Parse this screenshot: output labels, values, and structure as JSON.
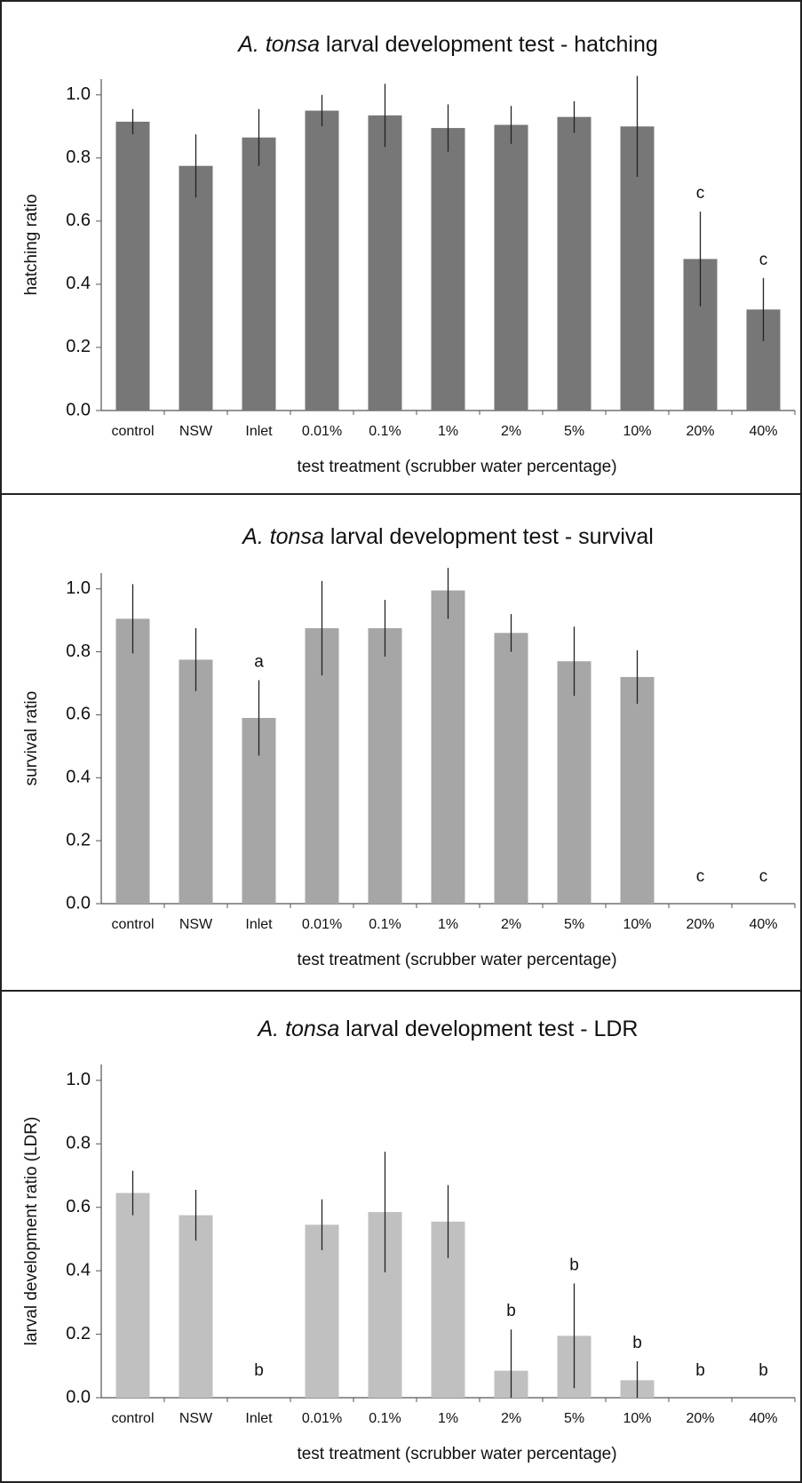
{
  "chart_data": [
    {
      "type": "bar",
      "title_species": "A. tonsa",
      "title": " larval development test - hatching",
      "ylabel": "hatching ratio",
      "xlabel": "test treatment (scrubber water percentage)",
      "categories": [
        "control",
        "NSW",
        "Inlet",
        "0.01%",
        "0.1%",
        "1%",
        "2%",
        "5%",
        "10%",
        "20%",
        "40%"
      ],
      "values": [
        0.915,
        0.775,
        0.865,
        0.95,
        0.935,
        0.895,
        0.905,
        0.93,
        0.9,
        0.48,
        0.32
      ],
      "errors": [
        0.04,
        0.1,
        0.09,
        0.05,
        0.1,
        0.075,
        0.06,
        0.05,
        0.16,
        0.15,
        0.1
      ],
      "annotations": [
        null,
        null,
        null,
        null,
        null,
        null,
        null,
        null,
        null,
        "c",
        "c"
      ],
      "color": "#777777",
      "ylim": [
        0,
        1.05
      ],
      "yticks": [
        {
          "value": 0,
          "label": "0.0"
        },
        0.2,
        0.4,
        0.6,
        0.8,
        {
          "value": 1,
          "label": "1.0"
        }
      ]
    },
    {
      "type": "bar",
      "title_species": "A. tonsa",
      "title": " larval development test - survival",
      "ylabel": "survival ratio",
      "xlabel": "test treatment (scrubber water percentage)",
      "categories": [
        "control",
        "NSW",
        "Inlet",
        "0.01%",
        "0.1%",
        "1%",
        "2%",
        "5%",
        "10%",
        "20%",
        "40%"
      ],
      "values": [
        0.905,
        0.775,
        0.59,
        0.875,
        0.875,
        0.995,
        0.86,
        0.77,
        0.72,
        0,
        0
      ],
      "errors": [
        0.11,
        0.1,
        0.12,
        0.15,
        0.09,
        0.09,
        0.06,
        0.11,
        0.085,
        null,
        null
      ],
      "annotations": [
        null,
        null,
        "a",
        null,
        null,
        null,
        null,
        null,
        null,
        "c",
        "c"
      ],
      "color": "#a6a6a6",
      "ylim": [
        0,
        1.05
      ],
      "yticks": [
        {
          "value": 0,
          "label": "0.0"
        },
        0.2,
        0.4,
        0.6,
        0.8,
        {
          "value": 1,
          "label": "1.0"
        }
      ]
    },
    {
      "type": "bar",
      "title_species": "A. tonsa",
      "title": " larval development test - LDR",
      "ylabel": "larval development ratio (LDR)",
      "xlabel": "test treatment (scrubber water percentage)",
      "categories": [
        "control",
        "NSW",
        "Inlet",
        "0.01%",
        "0.1%",
        "1%",
        "2%",
        "5%",
        "10%",
        "20%",
        "40%"
      ],
      "values": [
        0.645,
        0.575,
        0,
        0.545,
        0.585,
        0.555,
        0.085,
        0.195,
        0.055,
        0,
        0
      ],
      "errors": [
        0.07,
        0.08,
        null,
        0.08,
        0.19,
        0.115,
        0.13,
        0.165,
        0.06,
        null,
        null
      ],
      "annotations": [
        null,
        null,
        "b",
        null,
        null,
        null,
        "b",
        "b",
        "b",
        "b",
        "b"
      ],
      "color": "#c0c0c0",
      "ylim": [
        0,
        1.05
      ],
      "yticks": [
        {
          "value": 0,
          "label": "0.0"
        },
        0.2,
        0.4,
        0.6,
        0.8,
        {
          "value": 1,
          "label": "1.0"
        }
      ]
    }
  ]
}
